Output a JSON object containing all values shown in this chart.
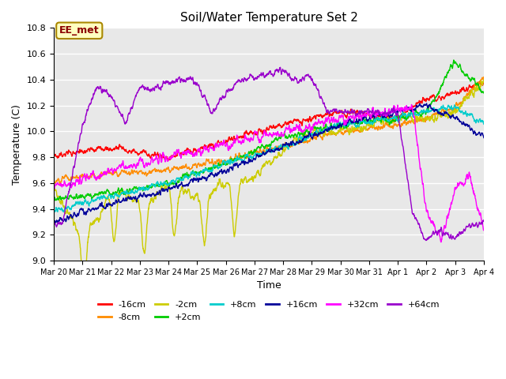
{
  "title": "Soil/Water Temperature Set 2",
  "xlabel": "Time",
  "ylabel": "Temperature (C)",
  "ylim": [
    9.0,
    10.8
  ],
  "annotation_text": "EE_met",
  "annotation_color": "#8B0000",
  "annotation_bg": "#FFFFC0",
  "background_color": "#E8E8E8",
  "series": [
    {
      "label": "-16cm",
      "color": "#FF0000"
    },
    {
      "label": "-8cm",
      "color": "#FF8C00"
    },
    {
      "label": "-2cm",
      "color": "#CCCC00"
    },
    {
      "label": "+2cm",
      "color": "#00CC00"
    },
    {
      "label": "+8cm",
      "color": "#00CCCC"
    },
    {
      "label": "+16cm",
      "color": "#000099"
    },
    {
      "label": "+32cm",
      "color": "#FF00FF"
    },
    {
      "label": "+64cm",
      "color": "#9900CC"
    }
  ],
  "xtick_positions": [
    0,
    1,
    2,
    3,
    4,
    5,
    6,
    7,
    8,
    9,
    10,
    11,
    12,
    13,
    14,
    15
  ],
  "xtick_labels": [
    "Mar 20",
    "Mar 21",
    "Mar 22",
    "Mar 23",
    "Mar 24",
    "Mar 25",
    "Mar 26",
    "Mar 27",
    "Mar 28",
    "Mar 29",
    "Mar 30",
    "Mar 31",
    "Apr 1",
    "Apr 2",
    "Apr 3",
    "Apr 4"
  ],
  "ytick_values": [
    9.0,
    9.2,
    9.4,
    9.6,
    9.8,
    10.0,
    10.2,
    10.4,
    10.6,
    10.8
  ],
  "ytick_labels": [
    "9.0",
    "9.2",
    "9.4",
    "9.6",
    "9.8",
    "10.0",
    "10.2",
    "10.4",
    "10.6",
    "10.8"
  ]
}
